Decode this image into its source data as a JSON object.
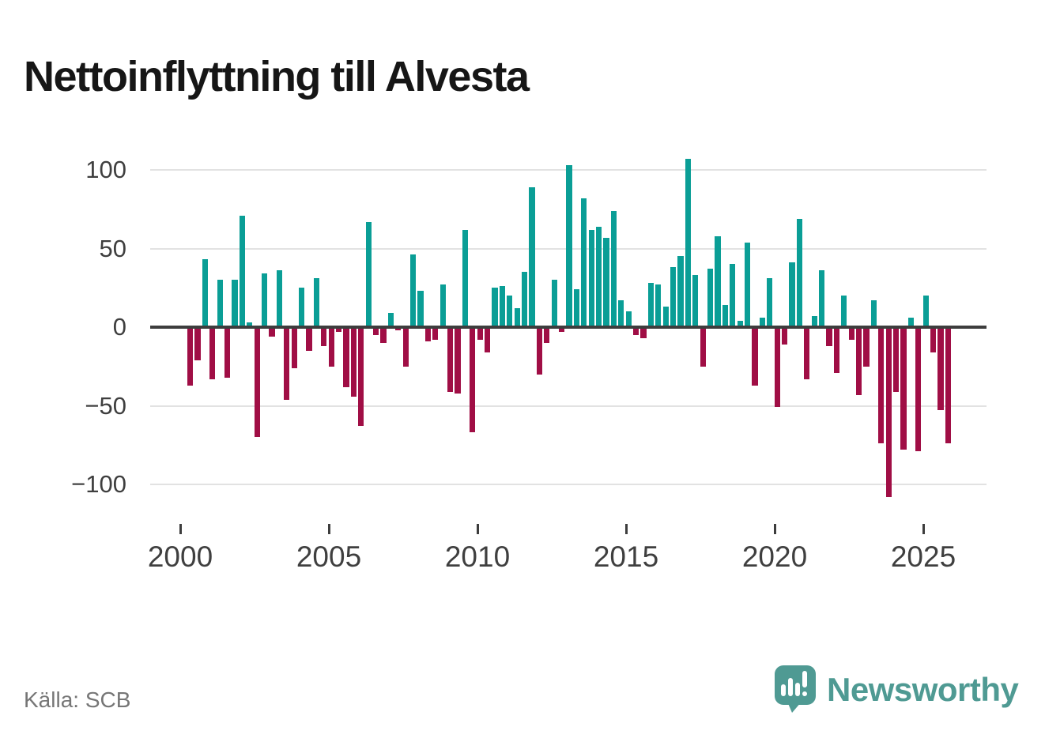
{
  "title": "Nettoinflyttning till Alvesta",
  "source": "Källa: SCB",
  "logo": {
    "text": "Newsworthy",
    "icon": "newsworthy-speech-bubble-chart-icon"
  },
  "colors": {
    "positive": "#0a9e96",
    "negative": "#a00e45",
    "grid": "#e2e2e2",
    "axis": "#3d3d3d",
    "axis_text": "#3f3f3f",
    "title_text": "#161616",
    "muted_text": "#767676",
    "logo_teal": "#4f9a93"
  },
  "chart_data": {
    "type": "bar",
    "title": "Nettoinflyttning till Alvesta",
    "frequency": "quarterly",
    "start_period": "2000-Q1",
    "end_period": "2025-Q3",
    "values": [
      -37,
      -21,
      43,
      -33,
      30,
      -32,
      30,
      71,
      3,
      -70,
      34,
      -6,
      36,
      -46,
      -26,
      25,
      -15,
      31,
      -12,
      -25,
      -3,
      -38,
      -44,
      -63,
      67,
      -5,
      -10,
      9,
      -2,
      -25,
      46,
      23,
      -9,
      -8,
      27,
      -41,
      -42,
      62,
      -67,
      -8,
      -16,
      25,
      26,
      20,
      12,
      35,
      89,
      -30,
      -10,
      30,
      -3,
      103,
      24,
      82,
      62,
      64,
      57,
      74,
      17,
      10,
      -5,
      -7,
      28,
      27,
      13,
      38,
      45,
      107,
      33,
      -25,
      37,
      58,
      14,
      40,
      4,
      54,
      -37,
      6,
      31,
      -51,
      -11,
      41,
      69,
      -33,
      7,
      36,
      -12,
      -29,
      20,
      -8,
      -43,
      -25,
      17,
      -74,
      -108,
      -41,
      -78,
      6,
      -79,
      20,
      -16,
      -53,
      -74
    ],
    "xticks": [
      2000,
      2005,
      2010,
      2015,
      2020,
      2025
    ],
    "yticks": [
      100,
      50,
      0,
      -50,
      -100
    ],
    "ylim": [
      -115,
      115
    ],
    "grid": true,
    "legend": "none"
  }
}
